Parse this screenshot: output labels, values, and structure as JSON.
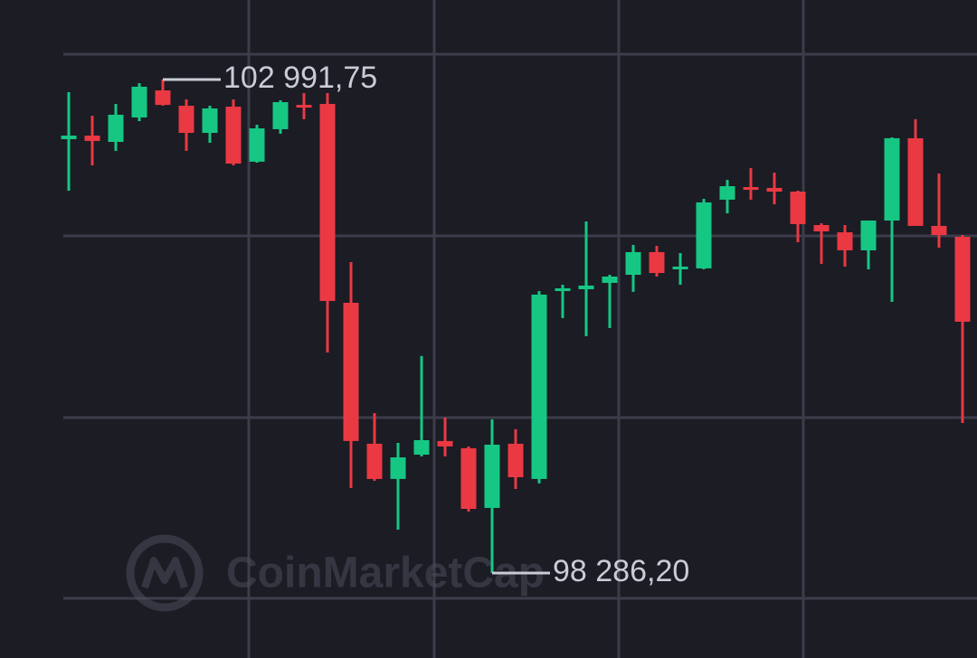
{
  "chart_data": {
    "type": "candlestick",
    "ylim": [
      97476,
      103750
    ],
    "up_color": "#16c784",
    "down_color": "#ea3943",
    "watermark": "CoinMarketCap",
    "series": {
      "open": [
        102423,
        102457,
        102397,
        102630,
        102888,
        102742,
        102483,
        102733,
        102208,
        102518,
        102750,
        102759,
        100863,
        99519,
        99183,
        99415,
        99545,
        99476,
        98907,
        99519,
        99183,
        100975,
        100992,
        101053,
        101130,
        101346,
        101182,
        101191,
        101846,
        101966,
        101958,
        101923,
        101604,
        101535,
        101363,
        101647,
        102432,
        101596,
        101492
      ],
      "high": [
        102871,
        102647,
        102759,
        102957,
        102991.75,
        102802,
        102742,
        102802,
        102561,
        102794,
        102862,
        102862,
        101251,
        99812,
        99527,
        100355,
        99769,
        99493,
        99751,
        99657,
        100975,
        101035,
        101639,
        101130,
        101415,
        101406,
        101337,
        101854,
        102035,
        102147,
        102104,
        101932,
        101621,
        101604,
        101647,
        102440,
        102613,
        102095,
        101509
      ],
      "low": [
        101932,
        102173,
        102311,
        102595,
        102742,
        102311,
        102388,
        102173,
        102199,
        102475,
        102613,
        100389,
        99096,
        99165,
        98700,
        99398,
        99398,
        98872,
        98286.2,
        99088,
        99140,
        100717,
        100544,
        100622,
        100967,
        101113,
        101035,
        101182,
        101716,
        101846,
        101802,
        101441,
        101234,
        101208,
        101182,
        100872,
        101621,
        101389,
        99717
      ],
      "close": [
        102457,
        102406,
        102656,
        102923,
        102750,
        102483,
        102716,
        102190,
        102526,
        102776,
        102733,
        100880,
        99545,
        99183,
        99389,
        99553,
        99493,
        98898,
        99510,
        99200,
        100941,
        101001,
        101027,
        101113,
        101346,
        101147,
        101208,
        101820,
        101975,
        101940,
        101923,
        101613,
        101544,
        101363,
        101647,
        102432,
        101596,
        101509,
        100682
      ]
    },
    "annotations": [
      {
        "value": 102991.75,
        "label": "102 991,75"
      },
      {
        "value": 98286.2,
        "label": "98 286,20"
      }
    ]
  }
}
